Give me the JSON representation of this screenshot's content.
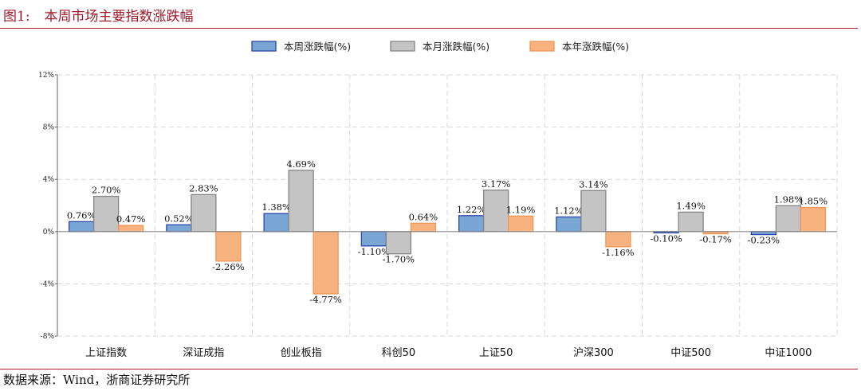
{
  "figure": {
    "label": "图1:",
    "title": "本周市场主要指数涨跌幅",
    "source": "数据来源：Wind，浙商证券研究所"
  },
  "chart_data": {
    "type": "bar",
    "categories": [
      "上证指数",
      "深证成指",
      "创业板指",
      "科创50",
      "上证50",
      "沪深300",
      "中证500",
      "中证1000"
    ],
    "series": [
      {
        "name": "本周涨跌幅(%)",
        "color": "#7aa6d6",
        "stroke": "#2b46a8",
        "values": [
          0.76,
          0.52,
          1.38,
          -1.1,
          1.22,
          1.12,
          -0.1,
          -0.23
        ],
        "labels": [
          "0.76%",
          "0.52%",
          "1.38%",
          "-1.10%",
          "1.22%",
          "1.12%",
          "-0.10%",
          "-0.23%"
        ]
      },
      {
        "name": "本月涨跌幅(%)",
        "color": "#c4c4c4",
        "stroke": "#858585",
        "values": [
          2.7,
          2.83,
          4.69,
          -1.7,
          3.17,
          3.14,
          1.49,
          1.98
        ],
        "labels": [
          "2.70%",
          "2.83%",
          "4.69%",
          "-1.70%",
          "3.17%",
          "3.14%",
          "1.49%",
          "1.98%"
        ]
      },
      {
        "name": "本年涨跌幅(%)",
        "color": "#f7b27f",
        "stroke": "#ee9755",
        "values": [
          0.47,
          -2.26,
          -4.77,
          0.64,
          1.19,
          -1.16,
          -0.17,
          1.85
        ],
        "labels": [
          "0.47%",
          "-2.26%",
          "-4.77%",
          "0.64%",
          "1.19%",
          "-1.16%",
          "-0.17%",
          "1.85%"
        ]
      }
    ],
    "ylim": [
      -8,
      12
    ],
    "yticks": [
      -8,
      -4,
      0,
      4,
      8,
      12
    ],
    "ytick_labels": [
      "-8%",
      "-4%",
      "0%",
      "4%",
      "8%",
      "12%"
    ],
    "grid": true,
    "legend_position": "top-center"
  }
}
